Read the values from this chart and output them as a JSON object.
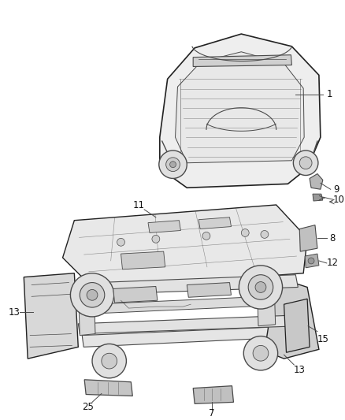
{
  "background_color": "#ffffff",
  "fig_width": 4.38,
  "fig_height": 5.33,
  "dpi": 100,
  "line_color": "#4a4a4a",
  "line_color_dark": "#222222",
  "fill_light": "#f2f2f2",
  "fill_mid": "#e0e0e0",
  "fill_dark": "#c8c8c8",
  "label_color": "#111111",
  "label_fontsize": 8.5,
  "callout_lw": 0.7
}
